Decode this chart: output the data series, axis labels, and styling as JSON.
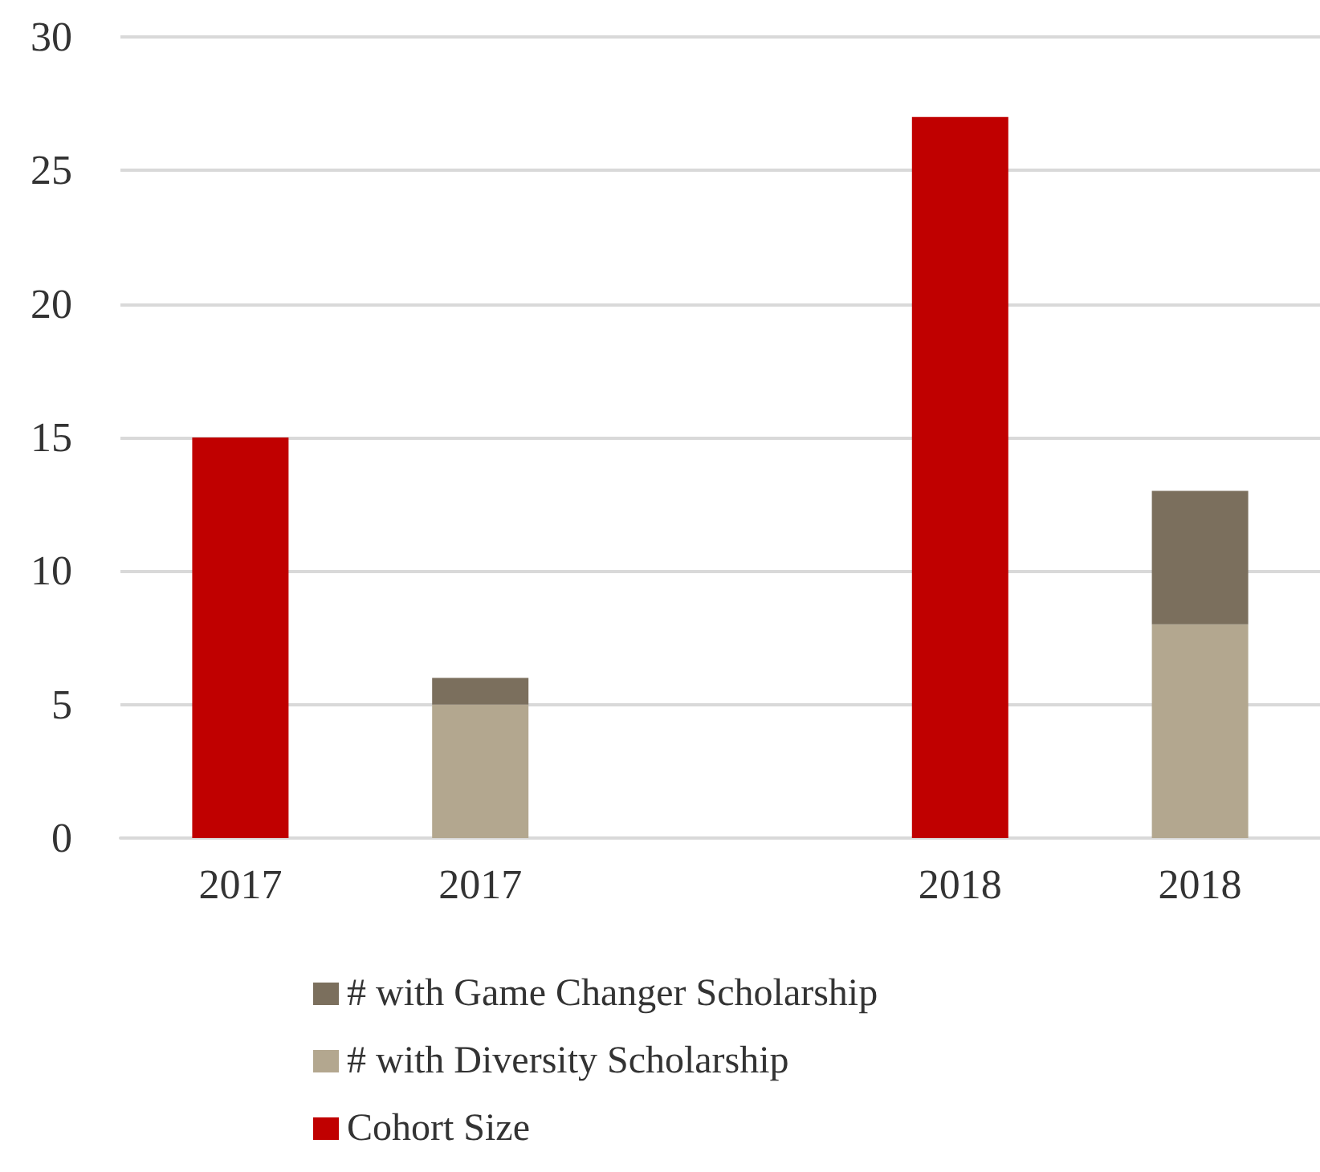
{
  "chart_data": {
    "type": "bar",
    "stacked": true,
    "categories": [
      "2017",
      "2017",
      null,
      "2018",
      "2018"
    ],
    "series": [
      {
        "name": "Cohort Size",
        "color": "#c00000",
        "values": [
          15,
          null,
          null,
          27,
          null
        ]
      },
      {
        "name": "# with Diversity Scholarship",
        "color": "#b3a78f",
        "values": [
          null,
          5,
          null,
          null,
          8
        ]
      },
      {
        "name": "# with Game Changer Scholarship",
        "color": "#7b6f5d",
        "values": [
          null,
          1,
          null,
          null,
          5
        ]
      }
    ],
    "ylim": [
      0,
      30
    ],
    "yticks": [
      0,
      5,
      10,
      15,
      20,
      25,
      30
    ],
    "grid": "y",
    "legend": "bottom"
  }
}
